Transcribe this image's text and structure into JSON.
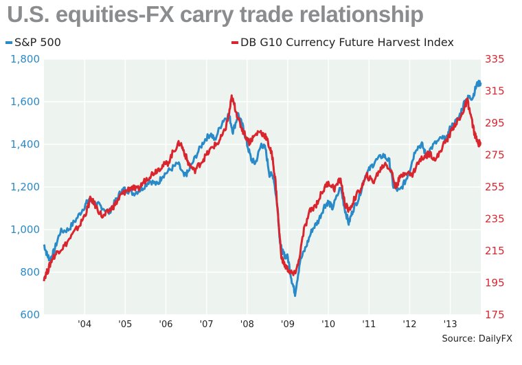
{
  "chart_data": {
    "type": "line",
    "title": "U.S. equities-FX carry trade relationship",
    "source": "Source: DailyFX",
    "x_ticks": [
      "'04",
      "'05",
      "'06",
      "'07",
      "'08",
      "'09",
      "'10",
      "'11",
      "'12",
      "'13"
    ],
    "x_range": [
      2003.0,
      2013.75
    ],
    "y_left": {
      "ticks": [
        "1,800",
        "1,600",
        "1,400",
        "1,200",
        "1,000",
        "800",
        "600"
      ],
      "range": [
        600,
        1800
      ]
    },
    "y_right": {
      "ticks": [
        "335",
        "315",
        "295",
        "275",
        "255",
        "235",
        "215",
        "195",
        "175"
      ],
      "range": [
        175,
        335
      ]
    },
    "series": [
      {
        "name": "S&P 500",
        "axis": "left",
        "color": "#2a8ac8",
        "x": [
          2003.0,
          2003.08,
          2003.15,
          2003.25,
          2003.4,
          2003.6,
          2003.8,
          2004.0,
          2004.1,
          2004.3,
          2004.4,
          2004.6,
          2004.75,
          2004.9,
          2005.0,
          2005.2,
          2005.4,
          2005.6,
          2005.8,
          2005.9,
          2006.1,
          2006.3,
          2006.45,
          2006.55,
          2006.75,
          2006.95,
          2007.1,
          2007.2,
          2007.4,
          2007.55,
          2007.65,
          2007.78,
          2007.9,
          2008.0,
          2008.1,
          2008.2,
          2008.35,
          2008.45,
          2008.55,
          2008.65,
          2008.75,
          2008.8,
          2008.85,
          2008.92,
          2009.0,
          2009.1,
          2009.18,
          2009.3,
          2009.45,
          2009.6,
          2009.75,
          2009.9,
          2010.0,
          2010.1,
          2010.3,
          2010.4,
          2010.5,
          2010.6,
          2010.75,
          2010.9,
          2011.0,
          2011.15,
          2011.35,
          2011.5,
          2011.6,
          2011.75,
          2011.9,
          2012.0,
          2012.15,
          2012.3,
          2012.4,
          2012.6,
          2012.8,
          2012.9,
          2013.0,
          2013.2,
          2013.35,
          2013.45,
          2013.55,
          2013.65,
          2013.75
        ],
        "values": [
          930,
          880,
          860,
          900,
          990,
          1000,
          1050,
          1110,
          1140,
          1120,
          1110,
          1080,
          1130,
          1180,
          1190,
          1170,
          1190,
          1230,
          1210,
          1250,
          1280,
          1310,
          1250,
          1270,
          1350,
          1420,
          1450,
          1420,
          1510,
          1540,
          1460,
          1540,
          1480,
          1400,
          1330,
          1310,
          1400,
          1380,
          1260,
          1250,
          1100,
          960,
          900,
          880,
          870,
          760,
          700,
          850,
          920,
          1000,
          1040,
          1110,
          1130,
          1100,
          1200,
          1100,
          1030,
          1090,
          1150,
          1250,
          1280,
          1320,
          1350,
          1320,
          1200,
          1180,
          1230,
          1280,
          1380,
          1400,
          1350,
          1400,
          1430,
          1420,
          1480,
          1520,
          1600,
          1620,
          1620,
          1680,
          1690
        ]
      },
      {
        "name": "DB G10 Currency Future Harvest Index",
        "axis": "right",
        "color": "#d9252e",
        "x": [
          2003.0,
          2003.1,
          2003.2,
          2003.35,
          2003.5,
          2003.7,
          2003.9,
          2004.05,
          2004.15,
          2004.3,
          2004.45,
          2004.6,
          2004.75,
          2004.9,
          2005.0,
          2005.15,
          2005.3,
          2005.45,
          2005.6,
          2005.75,
          2005.9,
          2006.05,
          2006.2,
          2006.35,
          2006.45,
          2006.55,
          2006.7,
          2006.85,
          2007.0,
          2007.15,
          2007.3,
          2007.45,
          2007.55,
          2007.62,
          2007.7,
          2007.8,
          2007.9,
          2008.05,
          2008.15,
          2008.3,
          2008.45,
          2008.55,
          2008.62,
          2008.7,
          2008.78,
          2008.85,
          2008.95,
          2009.05,
          2009.15,
          2009.25,
          2009.4,
          2009.55,
          2009.7,
          2009.85,
          2010.0,
          2010.15,
          2010.3,
          2010.4,
          2010.5,
          2010.65,
          2010.8,
          2010.95,
          2011.1,
          2011.25,
          2011.4,
          2011.55,
          2011.65,
          2011.75,
          2011.9,
          2012.05,
          2012.2,
          2012.35,
          2012.5,
          2012.65,
          2012.8,
          2012.95,
          2013.1,
          2013.25,
          2013.35,
          2013.42,
          2013.5,
          2013.6,
          2013.68,
          2013.75
        ],
        "values": [
          198,
          203,
          210,
          215,
          218,
          225,
          232,
          240,
          248,
          242,
          236,
          240,
          244,
          250,
          252,
          255,
          253,
          258,
          262,
          265,
          268,
          270,
          278,
          283,
          277,
          270,
          265,
          270,
          275,
          280,
          283,
          290,
          300,
          311,
          305,
          296,
          290,
          283,
          286,
          290,
          287,
          280,
          274,
          258,
          230,
          210,
          205,
          202,
          200,
          206,
          228,
          240,
          244,
          252,
          258,
          254,
          260,
          245,
          240,
          248,
          254,
          262,
          258,
          265,
          270,
          265,
          255,
          260,
          265,
          262,
          270,
          274,
          276,
          272,
          280,
          286,
          294,
          298,
          305,
          309,
          300,
          288,
          282,
          283
        ]
      }
    ]
  },
  "legend": {
    "left": {
      "label": "S&P 500",
      "color": "#2a8ac8"
    },
    "right": {
      "label": "DB G10 Currency Future Harvest Index",
      "color": "#d9252e"
    }
  },
  "colors": {
    "plot_bg": "#edf3ef",
    "grid": "#ffffff",
    "title": "#8a8c8e"
  }
}
